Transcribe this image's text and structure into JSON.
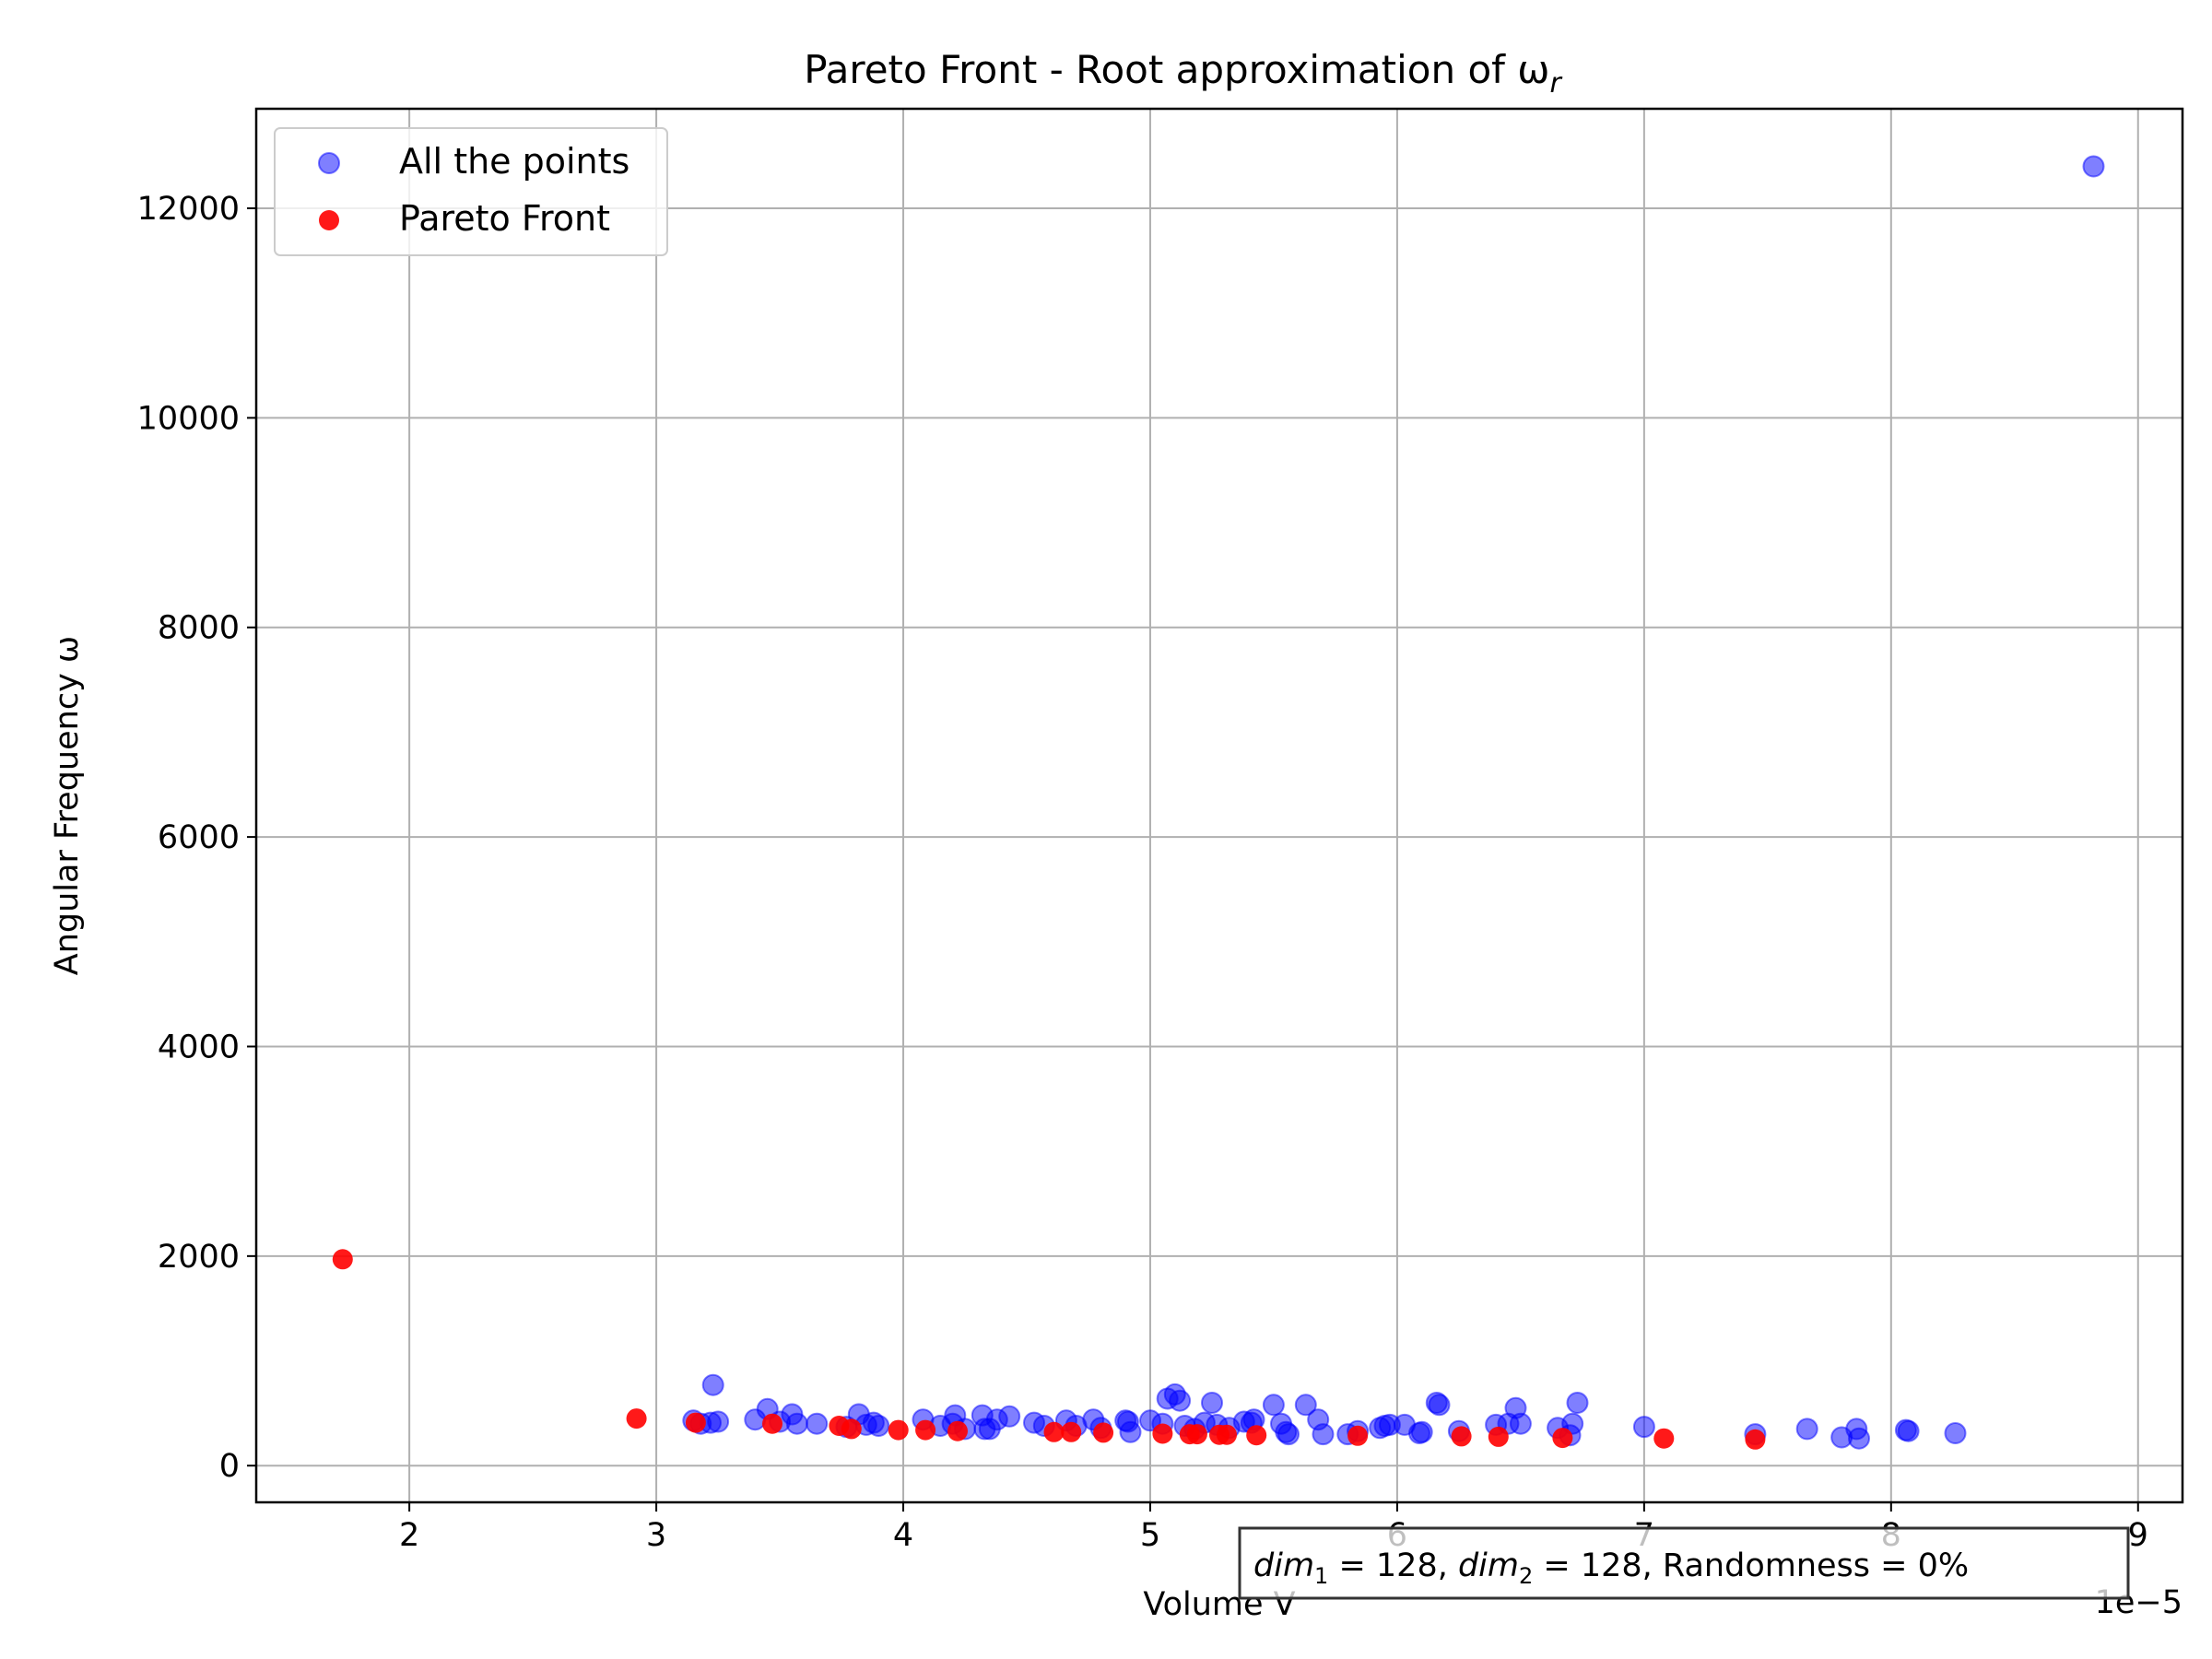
{
  "chart_data": {
    "type": "scatter",
    "title": "Pareto Front - Root approximation of ω",
    "title_sub": "r",
    "xlabel": "Volume V",
    "ylabel": "Angular Frequency ω",
    "x_offset_label": "1e−5",
    "x_scale_note": "x tick values are multiples of 1e-5",
    "xlim": [
      1.38,
      9.18
    ],
    "ylim": [
      -350,
      12950
    ],
    "xticks": [
      "2",
      "3",
      "4",
      "5",
      "6",
      "7",
      "8",
      "9"
    ],
    "yticks": [
      "0",
      "2000",
      "4000",
      "6000",
      "8000",
      "10000",
      "12000"
    ],
    "grid": true,
    "legend_position": "upper-left",
    "annotation": {
      "dim1_label": "dim",
      "dim1_sub": "1",
      "dim1_value": " = 128, ",
      "dim2_label": "dim",
      "dim2_sub": "2",
      "dim2_value": " = 128, Randomness = 0%"
    },
    "series": [
      {
        "name": "All the points",
        "color": "#0000ff",
        "alpha": 0.5,
        "points": [
          [
            3.15,
            430
          ],
          [
            3.18,
            400
          ],
          [
            3.22,
            410
          ],
          [
            3.23,
            770
          ],
          [
            3.25,
            420
          ],
          [
            3.4,
            440
          ],
          [
            3.45,
            540
          ],
          [
            3.5,
            420
          ],
          [
            3.55,
            490
          ],
          [
            3.57,
            400
          ],
          [
            3.65,
            400
          ],
          [
            3.77,
            370
          ],
          [
            3.82,
            490
          ],
          [
            3.85,
            390
          ],
          [
            3.88,
            410
          ],
          [
            3.9,
            380
          ],
          [
            4.08,
            440
          ],
          [
            4.15,
            380
          ],
          [
            4.2,
            400
          ],
          [
            4.21,
            480
          ],
          [
            4.25,
            350
          ],
          [
            4.32,
            480
          ],
          [
            4.33,
            350
          ],
          [
            4.35,
            350
          ],
          [
            4.38,
            440
          ],
          [
            4.43,
            470
          ],
          [
            4.53,
            410
          ],
          [
            4.57,
            380
          ],
          [
            4.66,
            430
          ],
          [
            4.7,
            380
          ],
          [
            4.77,
            440
          ],
          [
            4.8,
            360
          ],
          [
            4.9,
            430
          ],
          [
            4.91,
            420
          ],
          [
            4.92,
            320
          ],
          [
            5.0,
            430
          ],
          [
            5.05,
            400
          ],
          [
            5.07,
            640
          ],
          [
            5.1,
            680
          ],
          [
            5.12,
            620
          ],
          [
            5.14,
            380
          ],
          [
            5.18,
            350
          ],
          [
            5.22,
            410
          ],
          [
            5.25,
            600
          ],
          [
            5.27,
            390
          ],
          [
            5.32,
            360
          ],
          [
            5.38,
            420
          ],
          [
            5.41,
            410
          ],
          [
            5.42,
            440
          ],
          [
            5.5,
            580
          ],
          [
            5.53,
            400
          ],
          [
            5.55,
            320
          ],
          [
            5.56,
            300
          ],
          [
            5.63,
            580
          ],
          [
            5.68,
            440
          ],
          [
            5.7,
            300
          ],
          [
            5.8,
            300
          ],
          [
            5.84,
            330
          ],
          [
            5.93,
            360
          ],
          [
            5.95,
            380
          ],
          [
            5.97,
            390
          ],
          [
            6.03,
            390
          ],
          [
            6.09,
            310
          ],
          [
            6.1,
            320
          ],
          [
            6.16,
            600
          ],
          [
            6.17,
            580
          ],
          [
            6.25,
            330
          ],
          [
            6.4,
            390
          ],
          [
            6.45,
            400
          ],
          [
            6.48,
            550
          ],
          [
            6.5,
            400
          ],
          [
            6.65,
            360
          ],
          [
            6.7,
            290
          ],
          [
            6.71,
            400
          ],
          [
            6.73,
            600
          ],
          [
            7.0,
            370
          ],
          [
            7.45,
            300
          ],
          [
            7.66,
            350
          ],
          [
            7.8,
            270
          ],
          [
            7.86,
            350
          ],
          [
            7.87,
            260
          ],
          [
            8.06,
            340
          ],
          [
            8.07,
            330
          ],
          [
            8.26,
            310
          ],
          [
            8.82,
            12400
          ]
        ]
      },
      {
        "name": "Pareto Front",
        "color": "#ff0000",
        "alpha": 0.9,
        "points": [
          [
            1.73,
            1970
          ],
          [
            2.92,
            450
          ],
          [
            3.16,
            410
          ],
          [
            3.47,
            400
          ],
          [
            3.74,
            380
          ],
          [
            3.79,
            350
          ],
          [
            3.98,
            340
          ],
          [
            4.09,
            340
          ],
          [
            4.22,
            330
          ],
          [
            4.61,
            320
          ],
          [
            4.68,
            320
          ],
          [
            4.81,
            315
          ],
          [
            5.05,
            305
          ],
          [
            5.16,
            300
          ],
          [
            5.19,
            300
          ],
          [
            5.28,
            295
          ],
          [
            5.31,
            295
          ],
          [
            5.43,
            290
          ],
          [
            5.84,
            285
          ],
          [
            6.26,
            280
          ],
          [
            6.41,
            275
          ],
          [
            6.67,
            265
          ],
          [
            7.08,
            260
          ],
          [
            7.45,
            250
          ]
        ]
      }
    ]
  }
}
